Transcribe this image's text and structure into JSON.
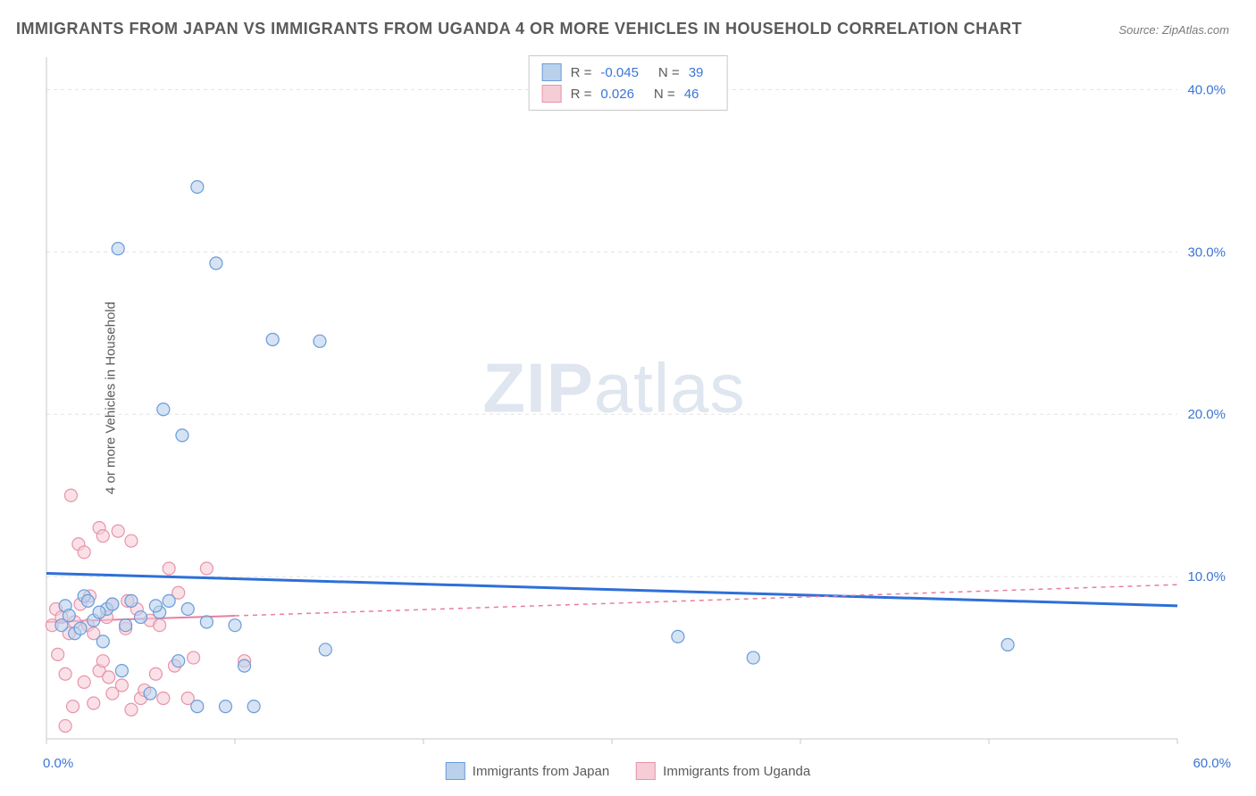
{
  "title": "IMMIGRANTS FROM JAPAN VS IMMIGRANTS FROM UGANDA 4 OR MORE VEHICLES IN HOUSEHOLD CORRELATION CHART",
  "source_prefix": "Source: ",
  "source_name": "ZipAtlas.com",
  "y_axis_label": "4 or more Vehicles in Household",
  "watermark_bold": "ZIP",
  "watermark_light": "atlas",
  "chart": {
    "type": "scatter",
    "background_color": "#ffffff",
    "grid_color": "#e2e2e2",
    "axis_color": "#c8c8c8",
    "xlim": [
      0,
      60
    ],
    "ylim": [
      0,
      42
    ],
    "x_ticks": [
      0,
      10,
      20,
      30,
      40,
      50,
      60
    ],
    "y_ticks": [
      10,
      20,
      30,
      40
    ],
    "x_tick_labels": [
      "0.0%",
      "",
      "",
      "",
      "",
      "",
      "60.0%"
    ],
    "y_tick_labels": [
      "10.0%",
      "20.0%",
      "30.0%",
      "40.0%"
    ],
    "marker_radius": 7,
    "marker_opacity": 0.6,
    "series": [
      {
        "name": "Immigrants from Japan",
        "color_fill": "#b9d1ec",
        "color_stroke": "#6a9cd9",
        "line_color": "#2e6fd8",
        "line_width": 3,
        "line_dash": "none",
        "r_label": "R =",
        "r_value": "-0.045",
        "n_label": "N =",
        "n_value": "39",
        "regression": {
          "x1": 0,
          "y1": 10.2,
          "x2": 60,
          "y2": 8.2
        },
        "regression_solid_until_x": 60,
        "points": [
          [
            0.8,
            7.0
          ],
          [
            1.0,
            8.2
          ],
          [
            1.5,
            6.5
          ],
          [
            2.0,
            8.8
          ],
          [
            2.5,
            7.3
          ],
          [
            3.0,
            6.0
          ],
          [
            3.2,
            8.0
          ],
          [
            4.0,
            4.2
          ],
          [
            4.5,
            8.5
          ],
          [
            3.8,
            30.2
          ],
          [
            5.0,
            7.5
          ],
          [
            5.5,
            2.8
          ],
          [
            6.0,
            7.8
          ],
          [
            6.2,
            20.3
          ],
          [
            6.5,
            8.5
          ],
          [
            7.0,
            4.8
          ],
          [
            7.2,
            18.7
          ],
          [
            7.5,
            8.0
          ],
          [
            8.0,
            34.0
          ],
          [
            8.0,
            2.0
          ],
          [
            8.5,
            7.2
          ],
          [
            9.0,
            29.3
          ],
          [
            9.5,
            2.0
          ],
          [
            10.0,
            7.0
          ],
          [
            10.5,
            4.5
          ],
          [
            11.0,
            2.0
          ],
          [
            12.0,
            24.6
          ],
          [
            14.5,
            24.5
          ],
          [
            14.8,
            5.5
          ],
          [
            33.5,
            6.3
          ],
          [
            37.5,
            5.0
          ],
          [
            51.0,
            5.8
          ],
          [
            2.2,
            8.5
          ],
          [
            1.8,
            6.8
          ],
          [
            5.8,
            8.2
          ],
          [
            4.2,
            7.0
          ],
          [
            3.5,
            8.3
          ],
          [
            2.8,
            7.8
          ],
          [
            1.2,
            7.6
          ]
        ]
      },
      {
        "name": "Immigrants from Uganda",
        "color_fill": "#f6cdd7",
        "color_stroke": "#e794aa",
        "line_color": "#e97da0",
        "line_width": 2,
        "line_dash": "5,5",
        "r_label": "R =",
        "r_value": "0.026",
        "n_label": "N =",
        "n_value": "46",
        "regression": {
          "x1": 0,
          "y1": 7.2,
          "x2": 60,
          "y2": 9.5
        },
        "regression_solid_until_x": 10,
        "points": [
          [
            0.3,
            7.0
          ],
          [
            0.5,
            8.0
          ],
          [
            0.8,
            7.5
          ],
          [
            1.0,
            0.8
          ],
          [
            1.2,
            6.5
          ],
          [
            1.5,
            7.2
          ],
          [
            1.7,
            12.0
          ],
          [
            1.8,
            8.3
          ],
          [
            1.3,
            15.0
          ],
          [
            2.0,
            3.5
          ],
          [
            2.0,
            11.5
          ],
          [
            2.2,
            7.0
          ],
          [
            2.5,
            2.2
          ],
          [
            2.5,
            6.5
          ],
          [
            2.8,
            4.2
          ],
          [
            2.8,
            13.0
          ],
          [
            3.0,
            12.5
          ],
          [
            3.0,
            4.8
          ],
          [
            3.2,
            7.5
          ],
          [
            3.5,
            2.8
          ],
          [
            3.5,
            8.3
          ],
          [
            3.8,
            12.8
          ],
          [
            4.0,
            3.3
          ],
          [
            4.2,
            6.8
          ],
          [
            4.5,
            1.8
          ],
          [
            4.5,
            12.2
          ],
          [
            4.8,
            8.0
          ],
          [
            5.0,
            2.5
          ],
          [
            5.5,
            7.3
          ],
          [
            5.8,
            4.0
          ],
          [
            6.0,
            7.0
          ],
          [
            6.5,
            10.5
          ],
          [
            6.8,
            4.5
          ],
          [
            7.0,
            9.0
          ],
          [
            7.5,
            2.5
          ],
          [
            7.8,
            5.0
          ],
          [
            8.5,
            10.5
          ],
          [
            10.5,
            4.8
          ],
          [
            1.0,
            4.0
          ],
          [
            1.4,
            2.0
          ],
          [
            0.6,
            5.2
          ],
          [
            2.3,
            8.8
          ],
          [
            3.3,
            3.8
          ],
          [
            4.3,
            8.5
          ],
          [
            5.2,
            3.0
          ],
          [
            6.2,
            2.5
          ]
        ]
      }
    ]
  }
}
